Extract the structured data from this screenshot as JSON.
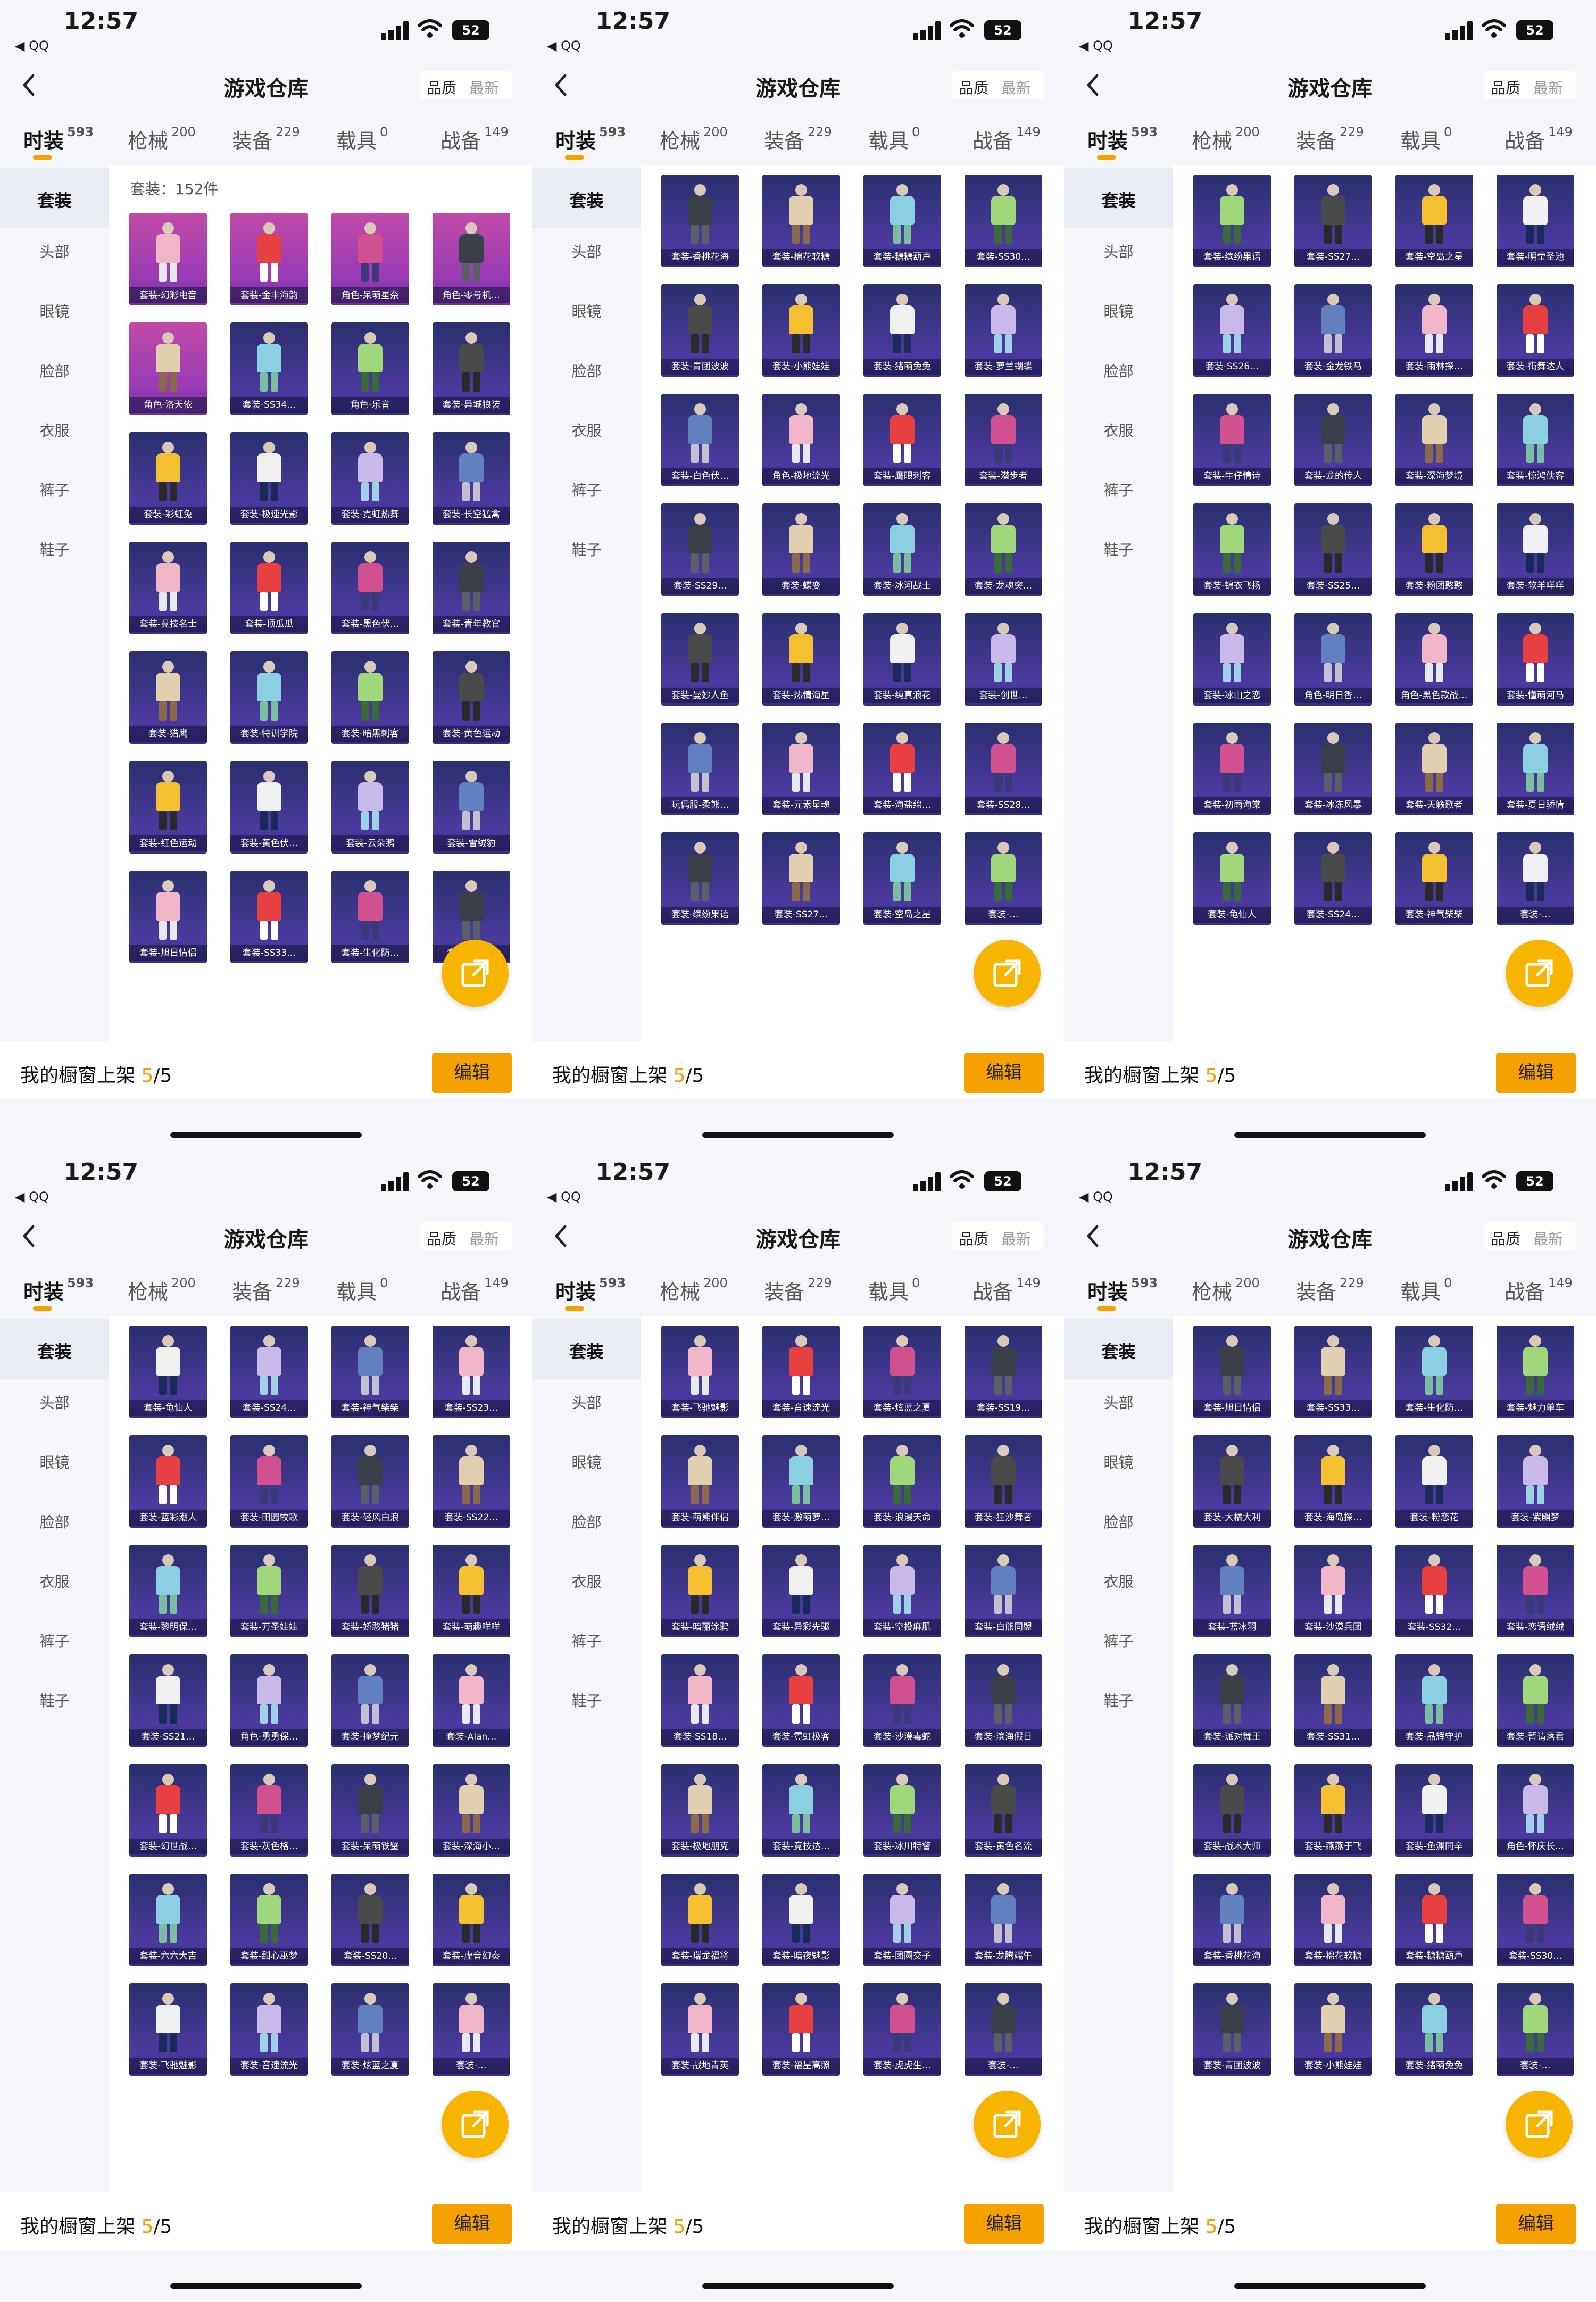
{
  "common": {
    "time": "12:57",
    "back_app": "◀ QQ",
    "battery": "52",
    "title": "游戏仓库",
    "sort_quality": "品质",
    "sort_latest": "最新",
    "tabs": [
      {
        "label": "时装",
        "count": "593"
      },
      {
        "label": "枪械",
        "count": "200"
      },
      {
        "label": "装备",
        "count": "229"
      },
      {
        "label": "载具",
        "count": "0"
      },
      {
        "label": "战备",
        "count": "149"
      }
    ],
    "sidebar": [
      "套装",
      "头部",
      "眼镜",
      "脸部",
      "衣服",
      "裤子",
      "鞋子"
    ],
    "bottom_prefix": "我的橱窗上架",
    "bottom_current": "5",
    "bottom_total": "/5",
    "edit_label": "编辑",
    "colors": {
      "accent": "#f5a200",
      "card_purple": "#3a2d86",
      "card_pink": "#b042ad"
    }
  },
  "panels": [
    {
      "count_label": "套装：152件",
      "items": [
        "套装-幻彩电音",
        "套装-金丰海韵",
        "角色-呆萌星奈",
        "角色-零号机…",
        "角色-洛天依",
        "套装-SS34…",
        "角色-乐音",
        "套装-异城狼装",
        "套装-彩虹兔",
        "套装-极速光影",
        "套装-霓虹热舞",
        "套装-长空猛禽",
        "套装-竞技名士",
        "套装-顶瓜瓜",
        "套装-黑色伏…",
        "套装-青年教官",
        "套装-猎鹰",
        "套装-特训学院",
        "套装-暗黑刺客",
        "套装-黄色运动",
        "套装-红色运动",
        "套装-黄色伏…",
        "套装-云朵鹅",
        "套装-雪绒豹",
        "套装-旭日情侣",
        "套装-SS33…",
        "套装-生化防…",
        "套装-魅力…"
      ],
      "pink": [
        0,
        1,
        2,
        3,
        4
      ]
    },
    {
      "count_label": "",
      "items": [
        "套装-香桃花海",
        "套装-棉花软糖",
        "套装-糖糖葫芦",
        "套装-SS30…",
        "套装-青团波波",
        "套装-小熊娃娃",
        "套装-猪萌兔兔",
        "套装-萝兰蝴蝶",
        "套装-白色伏…",
        "角色-极地流光",
        "套装-鹰眼刺客",
        "套装-潜步者",
        "套装-SS29…",
        "套装-蝶变",
        "套装-冰河战士",
        "套装-龙魂突…",
        "套装-曼妙人鱼",
        "套装-热情海星",
        "套装-纯真浪花",
        "套装-创世…",
        "玩偶服-柔熊…",
        "套装-元素星魂",
        "套装-海盐绵…",
        "套装-SS28…",
        "套装-缤纷果语",
        "套装-SS27…",
        "套装-空岛之星",
        "套装-…"
      ],
      "pink": []
    },
    {
      "count_label": "",
      "items": [
        "套装-缤纷果语",
        "套装-SS27…",
        "套装-空岛之星",
        "套装-明莹圣池",
        "套装-SS26…",
        "套装-金龙铁马",
        "套装-雨林探…",
        "套装-街舞达人",
        "套装-牛仔情诗",
        "套装-龙的传人",
        "套装-深海梦境",
        "套装-惊鸿侠客",
        "套装-锦衣飞扬",
        "套装-SS25…",
        "套装-粉团憨憨",
        "套装-软羊咩咩",
        "套装-冰山之恋",
        "角色-明日香…",
        "角色-黑色款战…",
        "套装-懂萌河马",
        "套装-初雨海棠",
        "套装-冰冻风暴",
        "套装-天籁歌者",
        "套装-夏日骄情",
        "套装-龟仙人",
        "套装-SS24…",
        "套装-神气柴柴",
        "套装-…"
      ],
      "pink": []
    },
    {
      "count_label": "",
      "items": [
        "套装-龟仙人",
        "套装-SS24…",
        "套装-神气柴柴",
        "套装-SS23…",
        "套装-蓝彩潮人",
        "套装-田园牧歌",
        "套装-轻风白浪",
        "套装-SS22…",
        "套装-黎明保…",
        "套装-万圣娃娃",
        "套装-娇憨猪猪",
        "套装-萌趣咩咩",
        "套装-SS21…",
        "角色-勇勇保…",
        "套装-撞梦纪元",
        "套装-Alan…",
        "套装-幻世战…",
        "套装-灰色格…",
        "套装-呆萌铁蟹",
        "套装-深海小…",
        "套装-六六大吉",
        "套装-甜心巫梦",
        "套装-SS20…",
        "套装-虚音幻奏",
        "套装-飞驰魅影",
        "套装-音速流光",
        "套装-炫蓝之夏",
        "套装-…"
      ],
      "pink": []
    },
    {
      "count_label": "",
      "items": [
        "套装-飞驰魅影",
        "套装-音速流光",
        "套装-炫蓝之夏",
        "套装-SS19…",
        "套装-萌熊伴侣",
        "套装-激萌萝…",
        "套装-浪漫天命",
        "套装-狂沙舞者",
        "套装-暗丽涂鸦",
        "套装-异彩先驱",
        "套装-空投麻肌",
        "套装-白熊同盟",
        "套装-SS18…",
        "套装-霓虹极客",
        "套装-沙漠毒蛇",
        "套装-滨海假日",
        "套装-极地朋克",
        "套装-竞技达…",
        "套装-冰川特警",
        "套装-黄色名流",
        "套装-瑞龙福将",
        "套装-暗夜魅影",
        "套装-团圆交子",
        "套装-龙腾端午",
        "套装-战地青英",
        "套装-福星高照",
        "套装-虎虎生…",
        "套装-…"
      ],
      "pink": []
    },
    {
      "count_label": "",
      "items": [
        "套装-旭日情侣",
        "套装-SS33…",
        "套装-生化防…",
        "套装-魅力单车",
        "套装-大橘大利",
        "套装-海岛探…",
        "套装-粉恋花",
        "套装-紫幽梦",
        "套装-蓝冰羽",
        "套装-沙漠兵团",
        "套装-SS32…",
        "套装-恋语绒绒",
        "套装-派对舞王",
        "套装-SS31…",
        "套装-晶辉守护",
        "套装-暂请落君",
        "套装-战术大师",
        "套装-燕燕于飞",
        "套装-鱼渊同辛",
        "角色-怀庆长…",
        "套装-香桃花海",
        "套装-棉花软糖",
        "套装-糖糖葫芦",
        "套装-SS30…",
        "套装-青团波波",
        "套装-小熊娃娃",
        "套装-猪萌兔兔",
        "套装-…"
      ],
      "pink": []
    }
  ]
}
